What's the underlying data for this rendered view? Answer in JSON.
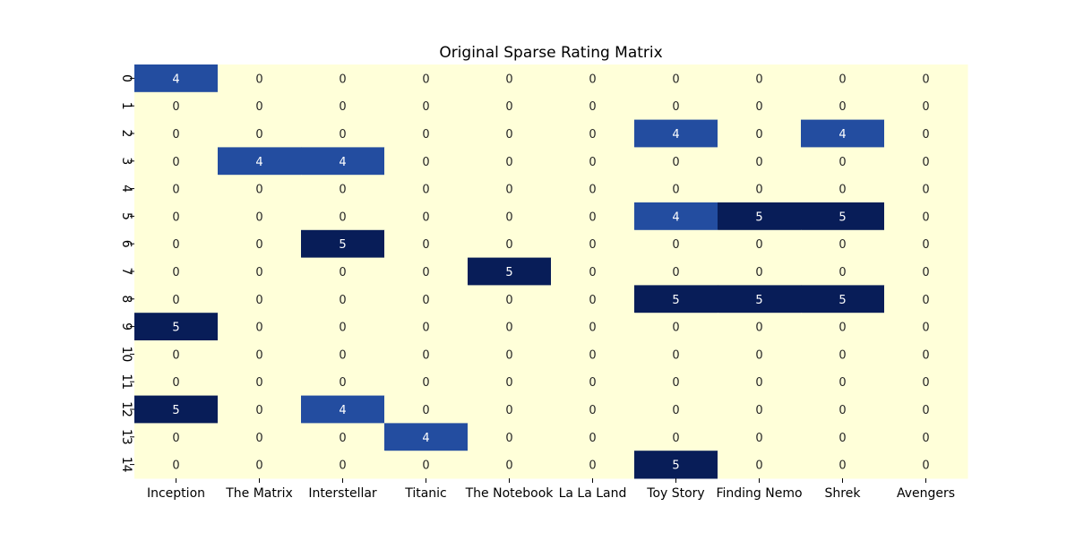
{
  "chart_data": {
    "type": "heatmap",
    "title": "Original Sparse Rating Matrix",
    "xlabel": "",
    "ylabel": "",
    "x_categories": [
      "Inception",
      "The Matrix",
      "Interstellar",
      "Titanic",
      "The Notebook",
      "La La Land",
      "Toy Story",
      "Finding Nemo",
      "Shrek",
      "Avengers"
    ],
    "y_categories": [
      "0",
      "1",
      "2",
      "3",
      "4",
      "5",
      "6",
      "7",
      "8",
      "9",
      "10",
      "11",
      "12",
      "13",
      "14"
    ],
    "values": [
      [
        4,
        0,
        0,
        0,
        0,
        0,
        0,
        0,
        0,
        0
      ],
      [
        0,
        0,
        0,
        0,
        0,
        0,
        0,
        0,
        0,
        0
      ],
      [
        0,
        0,
        0,
        0,
        0,
        0,
        4,
        0,
        4,
        0
      ],
      [
        0,
        4,
        4,
        0,
        0,
        0,
        0,
        0,
        0,
        0
      ],
      [
        0,
        0,
        0,
        0,
        0,
        0,
        0,
        0,
        0,
        0
      ],
      [
        0,
        0,
        0,
        0,
        0,
        0,
        4,
        5,
        5,
        0
      ],
      [
        0,
        0,
        5,
        0,
        0,
        0,
        0,
        0,
        0,
        0
      ],
      [
        0,
        0,
        0,
        0,
        5,
        0,
        0,
        0,
        0,
        0
      ],
      [
        0,
        0,
        0,
        0,
        0,
        0,
        5,
        5,
        5,
        0
      ],
      [
        5,
        0,
        0,
        0,
        0,
        0,
        0,
        0,
        0,
        0
      ],
      [
        0,
        0,
        0,
        0,
        0,
        0,
        0,
        0,
        0,
        0
      ],
      [
        0,
        0,
        0,
        0,
        0,
        0,
        0,
        0,
        0,
        0
      ],
      [
        5,
        0,
        4,
        0,
        0,
        0,
        0,
        0,
        0,
        0
      ],
      [
        0,
        0,
        0,
        4,
        0,
        0,
        0,
        0,
        0,
        0
      ],
      [
        0,
        0,
        0,
        0,
        0,
        0,
        5,
        0,
        0,
        0
      ]
    ],
    "value_range": [
      0,
      5
    ],
    "colormap": "YlGnBu",
    "colors": {
      "0": "#ffffd9",
      "4": "#234da0",
      "5": "#081d58"
    },
    "annotations": true,
    "colorbar": false,
    "grid": false
  }
}
